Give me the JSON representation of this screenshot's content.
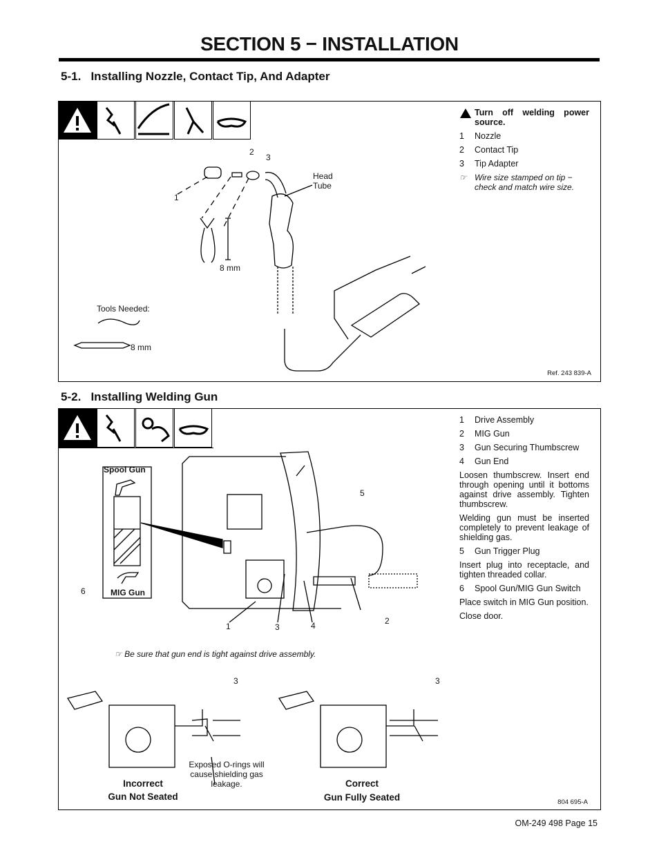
{
  "header": {
    "title": "SECTION 5 − INSTALLATION"
  },
  "section_1": {
    "heading": "5-1.   Installing Nozzle, Contact Tip, And Adapter",
    "warning": "Turn off welding power source.",
    "items": [
      {
        "num": "1",
        "text": "Nozzle"
      },
      {
        "num": "2",
        "text": "Contact Tip"
      },
      {
        "num": "3",
        "text": "Tip Adapter"
      }
    ],
    "note": "Wire size stamped on tip − check and match wire size.",
    "figure_labels": {
      "callout_1": "1",
      "callout_2": "2",
      "callout_3": "3",
      "head_tube": "Head Tube",
      "wrench_size": "8 mm",
      "tools_needed": "Tools Needed:",
      "tools_wrench_size": "8 mm"
    },
    "ref": "Ref. 243 839-A"
  },
  "section_2": {
    "heading": "5-2.   Installing Welding Gun",
    "instructions": [
      {
        "num": "1",
        "text": "Drive Assembly"
      },
      {
        "num": "2",
        "text": "MIG Gun"
      },
      {
        "num": "3",
        "text": "Gun Securing Thumbscrew"
      },
      {
        "num": "4",
        "text": "Gun End"
      },
      {
        "text": "Loosen thumbscrew. Insert end through opening until it bottoms against drive assembly. Tighten thumbscrew."
      },
      {
        "text": "Welding gun must be inserted completely to prevent leakage of shielding gas."
      },
      {
        "num": "5",
        "text": "Gun Trigger Plug"
      },
      {
        "text": "Insert plug into receptacle, and tighten threaded collar."
      },
      {
        "num": "6",
        "text": "Spool Gun/MIG Gun Switch"
      },
      {
        "text": "Place switch in MIG Gun position."
      },
      {
        "text": "Close door."
      }
    ],
    "figure_labels": {
      "spool_gun": "Spool Gun",
      "mig_gun": "MIG Gun",
      "callout_6": "6",
      "callout_1": "1",
      "callout_3": "3",
      "callout_4": "4",
      "callout_5": "5",
      "callout_2": "2"
    },
    "note": "Be sure that gun end is tight against drive assembly.",
    "incorrect": {
      "callout": "3",
      "caption": "Exposed O-rings will cause shielding gas leakage.",
      "title": "Incorrect",
      "subtitle": "Gun Not Seated"
    },
    "correct": {
      "callout": "3",
      "title": "Correct",
      "subtitle": "Gun Fully Seated"
    },
    "ref": "804 695-A"
  },
  "footer": {
    "page": "OM-249 498 Page 15"
  }
}
